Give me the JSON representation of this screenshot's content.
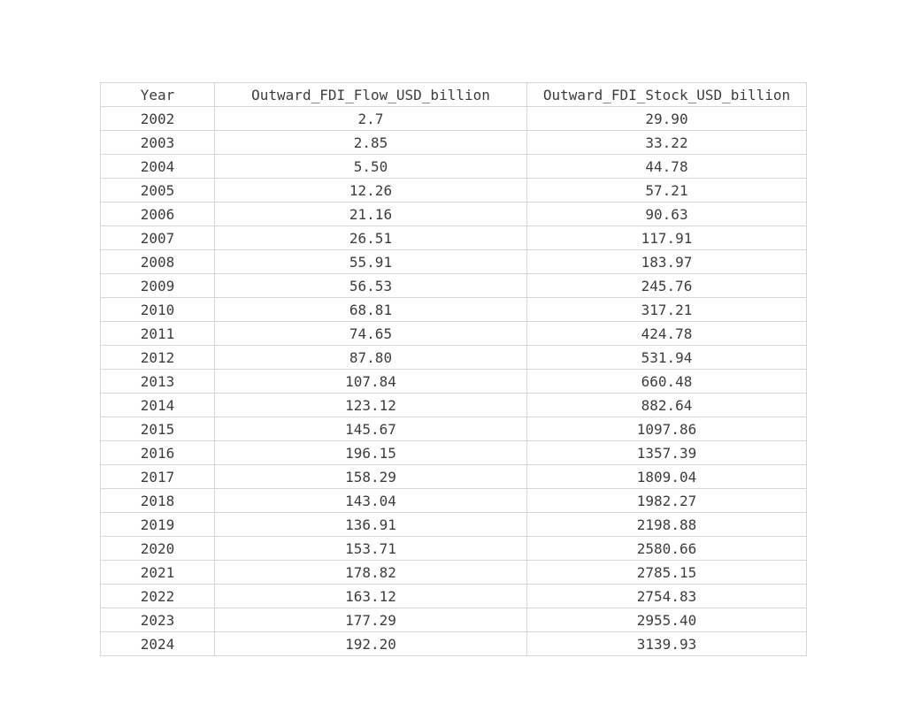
{
  "colors": {
    "background": "#ffffff",
    "border": "#d6d6d6",
    "text": "#3d3d3d"
  },
  "chart_data": {
    "type": "table",
    "title": "",
    "columns": [
      "Year",
      "Outward_FDI_Flow_USD_billion",
      "Outward_FDI_Stock_USD_billion"
    ],
    "rows": [
      [
        "2002",
        "2.7",
        "29.90"
      ],
      [
        "2003",
        "2.85",
        "33.22"
      ],
      [
        "2004",
        "5.50",
        "44.78"
      ],
      [
        "2005",
        "12.26",
        "57.21"
      ],
      [
        "2006",
        "21.16",
        "90.63"
      ],
      [
        "2007",
        "26.51",
        "117.91"
      ],
      [
        "2008",
        "55.91",
        "183.97"
      ],
      [
        "2009",
        "56.53",
        "245.76"
      ],
      [
        "2010",
        "68.81",
        "317.21"
      ],
      [
        "2011",
        "74.65",
        "424.78"
      ],
      [
        "2012",
        "87.80",
        "531.94"
      ],
      [
        "2013",
        "107.84",
        "660.48"
      ],
      [
        "2014",
        "123.12",
        "882.64"
      ],
      [
        "2015",
        "145.67",
        "1097.86"
      ],
      [
        "2016",
        "196.15",
        "1357.39"
      ],
      [
        "2017",
        "158.29",
        "1809.04"
      ],
      [
        "2018",
        "143.04",
        "1982.27"
      ],
      [
        "2019",
        "136.91",
        "2198.88"
      ],
      [
        "2020",
        "153.71",
        "2580.66"
      ],
      [
        "2021",
        "178.82",
        "2785.15"
      ],
      [
        "2022",
        "163.12",
        "2754.83"
      ],
      [
        "2023",
        "177.29",
        "2955.40"
      ],
      [
        "2024",
        "192.20",
        "3139.93"
      ]
    ]
  }
}
